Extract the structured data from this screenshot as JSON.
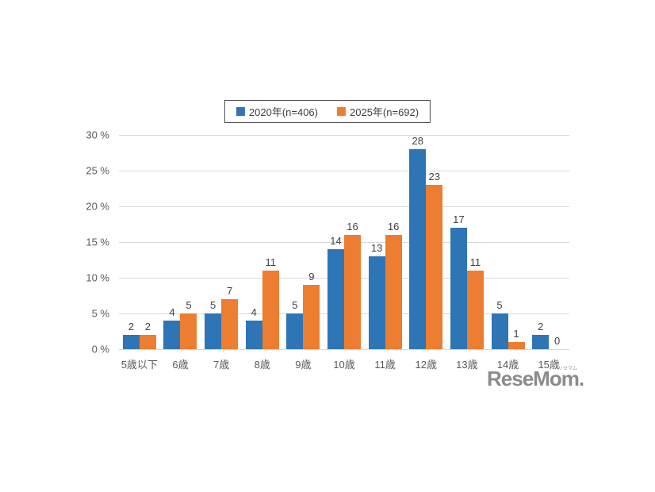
{
  "chart_data": {
    "type": "bar",
    "categories": [
      "5歳以下",
      "6歳",
      "7歳",
      "8歳",
      "9歳",
      "10歳",
      "11歳",
      "12歳",
      "13歳",
      "14歳",
      "15歳"
    ],
    "series": [
      {
        "name": "2020年(n=406)",
        "color": "#2E75B6",
        "values": [
          2,
          4,
          5,
          4,
          5,
          14,
          13,
          28,
          17,
          5,
          2
        ]
      },
      {
        "name": "2025年(n=692)",
        "color": "#ED7D31",
        "values": [
          2,
          5,
          7,
          11,
          9,
          16,
          16,
          23,
          11,
          1,
          0
        ]
      }
    ],
    "yticks": [
      {
        "value": 0,
        "label": "0 %"
      },
      {
        "value": 5,
        "label": "5 %"
      },
      {
        "value": 10,
        "label": "10 %"
      },
      {
        "value": 15,
        "label": "15 %"
      },
      {
        "value": 20,
        "label": "20 %"
      },
      {
        "value": 25,
        "label": "25 %"
      },
      {
        "value": 30,
        "label": "30 %"
      }
    ],
    "ylim": [
      0,
      30
    ],
    "grid": true,
    "legend_position": "top",
    "gridline_color": "#d9d9d9",
    "label_color": "#404040",
    "axis_text_color": "#595959"
  },
  "watermark": {
    "text": "ReseMom.",
    "ruby": "リセマム"
  }
}
